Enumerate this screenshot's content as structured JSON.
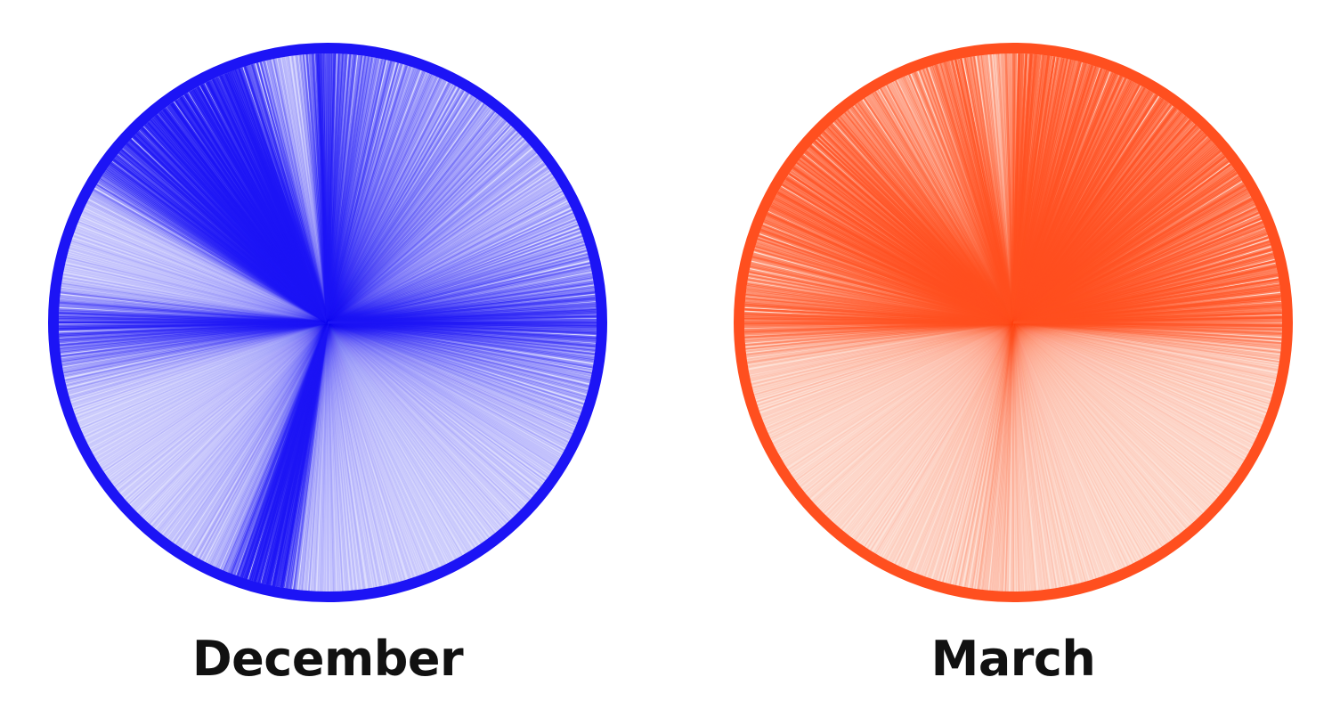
{
  "panels": [
    {
      "label": "December",
      "color": "#1c14f5",
      "light_color": "#dcdcfd"
    },
    {
      "label": "March",
      "color": "#ff4f1f",
      "light_color": "#fde2d8"
    }
  ]
}
